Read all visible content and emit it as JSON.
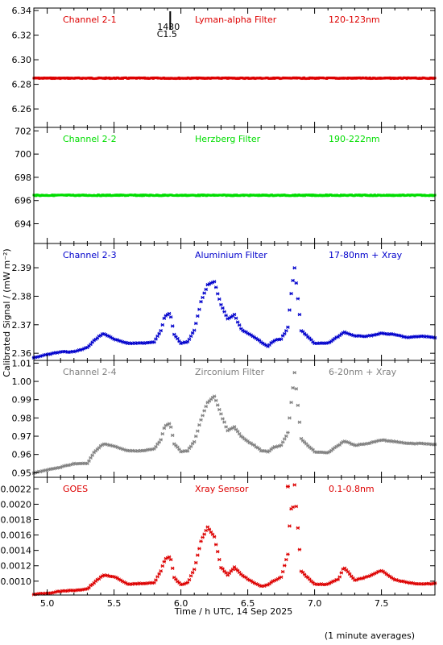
{
  "chart_data": {
    "type": "scatter",
    "xlabel": "Time / h UTC, 14 Sep 2025",
    "ylabel": "Calibrated Signal / (mW m⁻²)",
    "footnote": "(1 minute averages)",
    "xlim": [
      4.9,
      7.9
    ],
    "xticks": [
      5.0,
      5.5,
      6.0,
      6.5,
      7.0,
      7.5
    ],
    "xtick_labels": [
      "5.0",
      "5.5",
      "6.0",
      "6.5",
      "7.0",
      "7.5"
    ],
    "flare_marker": {
      "x": 5.92,
      "time": "1430",
      "class": "C1.5"
    },
    "panels": [
      {
        "channel": "Channel 2-1",
        "filter": "Lyman-alpha Filter",
        "band": "120-123nm",
        "color": "#dd0000",
        "style": "dense",
        "ylim": [
          6.245,
          6.342
        ],
        "yticks": [
          6.26,
          6.28,
          6.3,
          6.32,
          6.34
        ],
        "ytick_labels": [
          "6.26",
          "6.28",
          "6.30",
          "6.32",
          "6.34"
        ],
        "series": [
          {
            "x": [
              4.9,
              7.9
            ],
            "y": [
              6.285,
              6.285
            ]
          }
        ]
      },
      {
        "channel": "Channel 2-2",
        "filter": "Herzberg Filter",
        "band": "190-222nm",
        "color": "#00dd00",
        "style": "dense",
        "ylim": [
          692.3,
          702.3
        ],
        "yticks": [
          694,
          696,
          698,
          700,
          702
        ],
        "ytick_labels": [
          "694",
          "696",
          "698",
          "700",
          "702"
        ],
        "series": [
          {
            "x": [
              4.9,
              7.9
            ],
            "y": [
              696.45,
              696.45
            ]
          }
        ]
      },
      {
        "channel": "Channel 2-3",
        "filter": "Aluminium Filter",
        "band": "17-80nm + Xray",
        "color": "#0000cc",
        "style": "points",
        "ylim": [
          2.3575,
          2.3985
        ],
        "yticks": [
          2.36,
          2.37,
          2.38,
          2.39
        ],
        "ytick_labels": [
          "2.36",
          "2.37",
          "2.38",
          "2.39"
        ],
        "series": [
          {
            "x": [
              4.9,
              5.0,
              5.1,
              5.2,
              5.3,
              5.35,
              5.42,
              5.5,
              5.6,
              5.7,
              5.8,
              5.85,
              5.88,
              5.92,
              5.95,
              6.0,
              6.05,
              6.1,
              6.15,
              6.2,
              6.25,
              6.3,
              6.35,
              6.4,
              6.45,
              6.5,
              6.55,
              6.6,
              6.65,
              6.7,
              6.75,
              6.8,
              6.82,
              6.85,
              6.9,
              7.0,
              7.1,
              7.18,
              7.22,
              7.3,
              7.4,
              7.5,
              7.6,
              7.7,
              7.8,
              7.9
            ],
            "y": [
              2.3585,
              2.3595,
              2.3605,
              2.3605,
              2.362,
              2.3645,
              2.367,
              2.365,
              2.3635,
              2.3635,
              2.364,
              2.368,
              2.373,
              2.374,
              2.3665,
              2.3635,
              2.364,
              2.368,
              2.378,
              2.384,
              2.385,
              2.377,
              2.372,
              2.3735,
              2.3685,
              2.367,
              2.3655,
              2.364,
              2.3625,
              2.3645,
              2.365,
              2.369,
              2.379,
              2.39,
              2.368,
              2.3635,
              2.3635,
              2.366,
              2.3675,
              2.366,
              2.366,
              2.367,
              2.3665,
              2.3655,
              2.366,
              2.3655
            ]
          }
        ]
      },
      {
        "channel": "Channel 2-4",
        "filter": "Zirconium Filter",
        "band": "6-20nm + Xray",
        "color": "#808080",
        "style": "points",
        "ylim": [
          0.9475,
          1.0115
        ],
        "yticks": [
          0.95,
          0.96,
          0.97,
          0.98,
          0.99,
          1.0,
          1.01
        ],
        "ytick_labels": [
          "0.95",
          "0.96",
          "0.97",
          "0.98",
          "0.99",
          "1.00",
          "1.01"
        ],
        "series": [
          {
            "x": [
              4.9,
              5.0,
              5.1,
              5.2,
              5.3,
              5.35,
              5.42,
              5.5,
              5.6,
              5.7,
              5.8,
              5.85,
              5.88,
              5.92,
              5.95,
              6.0,
              6.05,
              6.1,
              6.15,
              6.2,
              6.25,
              6.3,
              6.35,
              6.4,
              6.45,
              6.5,
              6.55,
              6.6,
              6.65,
              6.7,
              6.75,
              6.8,
              6.82,
              6.85,
              6.9,
              7.0,
              7.1,
              7.18,
              7.22,
              7.3,
              7.4,
              7.5,
              7.6,
              7.7,
              7.8,
              7.9
            ],
            "y": [
              0.95,
              0.9515,
              0.953,
              0.955,
              0.955,
              0.961,
              0.966,
              0.9645,
              0.962,
              0.962,
              0.963,
              0.968,
              0.9755,
              0.977,
              0.966,
              0.9615,
              0.962,
              0.967,
              0.979,
              0.9885,
              0.992,
              0.982,
              0.973,
              0.975,
              0.97,
              0.967,
              0.965,
              0.962,
              0.9615,
              0.964,
              0.965,
              0.972,
              0.985,
              1.005,
              0.9685,
              0.9615,
              0.961,
              0.965,
              0.9675,
              0.965,
              0.966,
              0.968,
              0.967,
              0.966,
              0.966,
              0.9655
            ]
          }
        ]
      },
      {
        "channel": "GOES",
        "filter": "Xray Sensor",
        "band": "0.1-0.8nm",
        "color": "#dd0000",
        "style": "points",
        "ylim": [
          0.00082,
          0.00235
        ],
        "yticks": [
          0.001,
          0.0012,
          0.0014,
          0.0016,
          0.0018,
          0.002,
          0.0022
        ],
        "ytick_labels": [
          "0.0010",
          "0.0012",
          "0.0014",
          "0.0016",
          "0.0018",
          "0.0020",
          "0.0022"
        ],
        "series": [
          {
            "x": [
              4.9,
              5.0,
              5.1,
              5.2,
              5.3,
              5.35,
              5.42,
              5.5,
              5.6,
              5.7,
              5.8,
              5.85,
              5.88,
              5.92,
              5.95,
              6.0,
              6.05,
              6.1,
              6.15,
              6.2,
              6.25,
              6.3,
              6.35,
              6.4,
              6.45,
              6.5,
              6.55,
              6.6,
              6.65,
              6.7,
              6.75,
              6.8,
              6.82,
              6.84,
              6.85,
              6.9,
              7.0,
              7.1,
              7.18,
              7.22,
              7.3,
              7.4,
              7.5,
              7.6,
              7.7,
              7.8,
              7.9
            ],
            "y": [
              0.00083,
              0.00084,
              0.00087,
              0.00088,
              0.0009,
              0.00098,
              0.00108,
              0.00106,
              0.00096,
              0.00097,
              0.00098,
              0.00113,
              0.00128,
              0.00133,
              0.00105,
              0.00095,
              0.00098,
              0.00115,
              0.00152,
              0.0017,
              0.00158,
              0.00118,
              0.00108,
              0.00118,
              0.00109,
              0.00103,
              0.00098,
              0.00093,
              0.00095,
              0.00101,
              0.00105,
              0.00135,
              0.00193,
              0.00197,
              0.00225,
              0.00113,
              0.00096,
              0.00096,
              0.00103,
              0.00118,
              0.00101,
              0.00106,
              0.00114,
              0.00102,
              0.00098,
              0.00096,
              0.00097
            ]
          }
        ]
      }
    ]
  }
}
